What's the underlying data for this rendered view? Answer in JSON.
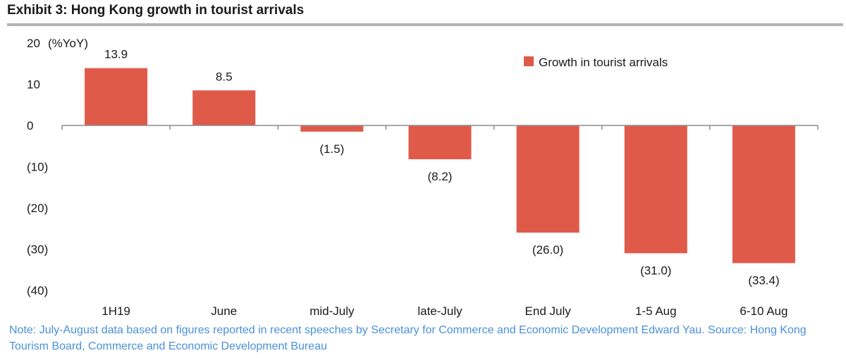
{
  "title": "Exhibit 3: Hong Kong growth in tourist arrivals",
  "note": "Note: July-August data based on figures reported in recent speeches by Secretary for Commerce and Economic Development Edward Yau. Source: Hong Kong Tourism Board, Commerce and Economic Development Bureau",
  "colors": {
    "bar": "#e05a4a",
    "axis": "#8c8c8c",
    "text": "#1a1a1a",
    "note": "#4a90d9"
  },
  "chart_data": {
    "type": "bar",
    "title": "Exhibit 3: Hong Kong growth in tourist arrivals",
    "ylabel": "(%YoY)",
    "xlabel": "",
    "ylim": [
      -40,
      20
    ],
    "yticks": [
      20,
      10,
      0,
      -10,
      -20,
      -30,
      -40
    ],
    "ytick_labels": [
      "20",
      "10",
      "0",
      "(10)",
      "(20)",
      "(30)",
      "(40)"
    ],
    "categories": [
      "1H19",
      "June",
      "mid-July",
      "late-July",
      "End July",
      "1-5 Aug",
      "6-10 Aug"
    ],
    "series": [
      {
        "name": "Growth in tourist arrivals",
        "values": [
          13.9,
          8.5,
          -1.5,
          -8.2,
          -26.0,
          -31.0,
          -33.4
        ],
        "labels": [
          "13.9",
          "8.5",
          "(1.5)",
          "(8.2)",
          "(26.0)",
          "(31.0)",
          "(33.4)"
        ]
      }
    ],
    "legend": "top-right",
    "grid": false
  }
}
